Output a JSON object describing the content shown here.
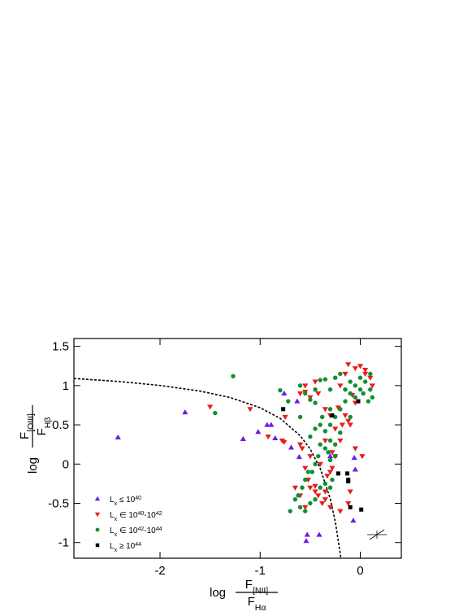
{
  "chart_data": {
    "type": "scatter",
    "xlabel": {
      "prefix": "log",
      "numerator": "F_[NII]",
      "denominator": "F_Hα"
    },
    "ylabel": {
      "prefix": "log",
      "numerator": "F_[OIII]",
      "denominator": "F_Hβ"
    },
    "xlim": [
      -2.86,
      0.41
    ],
    "ylim": [
      -1.2,
      1.6
    ],
    "xticks": [
      -2,
      -1,
      0
    ],
    "yticks": [
      -1,
      -0.5,
      0,
      0.5,
      1,
      1.5
    ],
    "grid": false,
    "legend": "lower left",
    "series": [
      {
        "name": "L_x ≤ 10^40",
        "color": "#6a1ee6",
        "marker": "triangle-up",
        "x": [
          -2.42,
          -1.75,
          -1.17,
          -1.02,
          -0.93,
          -0.89,
          -0.85,
          -0.76,
          -0.69,
          -0.63,
          -0.61,
          -0.53,
          -0.54,
          -0.41,
          -0.06,
          -0.05,
          -0.3,
          -0.07
        ],
        "values": [
          0.34,
          0.66,
          0.32,
          0.41,
          0.5,
          0.5,
          0.33,
          0.9,
          0.21,
          0.8,
          0.09,
          -0.9,
          -0.98,
          -0.9,
          0.08,
          -0.07,
          0.1,
          -0.72
        ]
      },
      {
        "name": "L_x ∈ 10^40-10^42",
        "color": "#e61e1e",
        "marker": "triangle-down",
        "x": [
          -1.5,
          -1.1,
          -0.92,
          -0.78,
          -0.76,
          -0.75,
          -0.55,
          -0.6,
          -0.55,
          -0.5,
          -0.45,
          -0.42,
          -0.35,
          -0.3,
          -0.6,
          -0.58,
          -0.55,
          -0.52,
          -0.5,
          -0.45,
          -0.42,
          -0.38,
          -0.35,
          -0.33,
          -0.3,
          -0.28,
          -0.25,
          -0.2,
          -0.18,
          -0.15,
          -0.12,
          -0.1,
          -0.2,
          -0.15,
          -0.05,
          -0.12,
          0.0,
          0.05,
          0.1,
          0.12,
          -0.08,
          -0.05,
          0.02,
          -0.12,
          -0.2,
          -0.3,
          -0.35,
          -0.45,
          -0.5,
          -0.4,
          -0.35,
          -0.28,
          -0.6,
          -0.55,
          -0.65,
          -0.25,
          -0.1,
          -0.05,
          0.05,
          -0.22
        ],
        "values": [
          0.73,
          0.7,
          0.35,
          0.3,
          0.28,
          0.6,
          1.0,
          0.9,
          0.92,
          0.85,
          1.05,
          0.9,
          0.7,
          0.62,
          0.25,
          0.2,
          -0.05,
          -0.2,
          -0.3,
          -0.35,
          -0.4,
          -0.5,
          -0.45,
          -0.15,
          -0.1,
          -0.05,
          0.1,
          0.3,
          0.5,
          0.62,
          0.55,
          0.5,
          1.0,
          1.15,
          1.22,
          1.27,
          1.25,
          1.2,
          1.1,
          1.0,
          0.88,
          0.78,
          0.1,
          -0.5,
          -0.6,
          -0.55,
          -0.35,
          -0.28,
          0.1,
          0.0,
          0.3,
          0.15,
          -0.4,
          -0.55,
          -0.3,
          0.45,
          -0.35,
          0.2,
          1.15,
          0.72
        ]
      },
      {
        "name": "L_x ∈ 10^42-10^44",
        "color": "#109030",
        "marker": "circle",
        "x": [
          -1.27,
          -1.45,
          -0.8,
          -0.72,
          -0.6,
          -0.4,
          -0.35,
          -0.5,
          -0.45,
          -0.3,
          -0.25,
          -0.3,
          -0.35,
          -0.4,
          -0.45,
          -0.5,
          -0.4,
          -0.35,
          -0.32,
          -0.3,
          -0.25,
          -0.42,
          -0.45,
          -0.48,
          -0.52,
          -0.55,
          -0.58,
          -0.62,
          -0.65,
          -0.7,
          -0.6,
          -0.55,
          -0.5,
          -0.45,
          -0.4,
          -0.35,
          -0.3,
          -0.28,
          -0.3,
          -0.25,
          -0.2,
          -0.15,
          -0.1,
          -0.05,
          0.0,
          0.05,
          0.1,
          0.12,
          0.08,
          0.0,
          -0.1,
          -0.2,
          -0.25,
          -0.15,
          0.03,
          0.1,
          -0.05,
          -0.2,
          -0.1,
          -0.3,
          -0.38,
          -0.45,
          -0.55,
          -0.6
        ],
        "values": [
          1.12,
          0.65,
          0.94,
          0.8,
          1.0,
          1.07,
          1.08,
          0.82,
          0.78,
          0.95,
          0.6,
          0.5,
          0.42,
          0.5,
          0.45,
          0.35,
          0.25,
          0.2,
          0.15,
          0.05,
          0.1,
          0.1,
          0.0,
          -0.1,
          -0.1,
          -0.2,
          -0.3,
          -0.4,
          -0.45,
          -0.6,
          -0.55,
          -0.6,
          -0.5,
          -0.45,
          -0.3,
          -0.25,
          -0.3,
          -0.2,
          0.3,
          0.25,
          0.4,
          0.8,
          0.9,
          1.0,
          1.1,
          1.05,
          0.95,
          0.85,
          0.8,
          0.95,
          1.05,
          1.15,
          1.1,
          0.95,
          0.9,
          1.15,
          0.85,
          0.7,
          0.6,
          0.7,
          0.6,
          0.95,
          0.9,
          0.6
        ]
      },
      {
        "name": "L_x ≥ 10^44",
        "color": "#000000",
        "marker": "square",
        "x": [
          -0.77,
          -0.02,
          -0.22,
          -0.13,
          -0.12,
          -0.1,
          0.01,
          -0.28,
          -0.12
        ],
        "values": [
          0.7,
          0.8,
          -0.12,
          -0.12,
          -0.2,
          -0.55,
          -0.58,
          0.62,
          -0.22
        ]
      }
    ],
    "curve": {
      "style": "dashed",
      "color": "#000000",
      "x": [
        -2.86,
        -2.8,
        -2.4,
        -2.0,
        -1.6,
        -1.3,
        -1.0,
        -0.8,
        -0.6,
        -0.5,
        -0.4,
        -0.3,
        -0.25,
        -0.2,
        -0.19
      ],
      "values": [
        1.09,
        1.086,
        1.051,
        1.002,
        0.93,
        0.848,
        0.719,
        0.582,
        0.362,
        0.191,
        -0.056,
        -0.443,
        -0.733,
        -1.14,
        -1.24
      ]
    }
  }
}
